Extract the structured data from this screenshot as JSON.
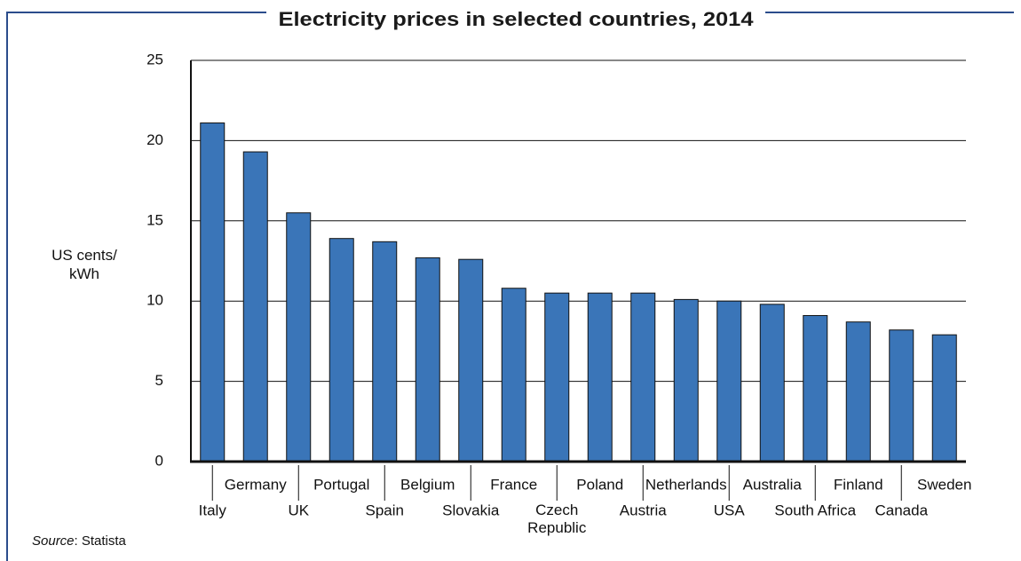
{
  "chart_data": {
    "type": "bar",
    "title": "Electricity prices in selected countries, 2014",
    "y_label": "US cents/ kWh",
    "source_label": "Source",
    "source": ": Statista",
    "categories": [
      "Italy",
      "Germany",
      "UK",
      "Portugal",
      "Spain",
      "Belgium",
      "Slovakia",
      "France",
      "Czech Republic",
      "Poland",
      "Austria",
      "Netherlands",
      "USA",
      "Australia",
      "South Africa",
      "Finland",
      "Canada",
      "Sweden"
    ],
    "values": [
      21.1,
      19.3,
      15.5,
      13.9,
      13.7,
      12.7,
      12.6,
      10.8,
      10.5,
      10.5,
      10.5,
      10.1,
      10.0,
      9.8,
      9.1,
      8.7,
      8.2,
      7.9
    ],
    "color": "#3a75b8",
    "ylim": [
      0,
      25
    ],
    "yticks": [
      0,
      5,
      10,
      15,
      20,
      25
    ],
    "grid": true
  }
}
